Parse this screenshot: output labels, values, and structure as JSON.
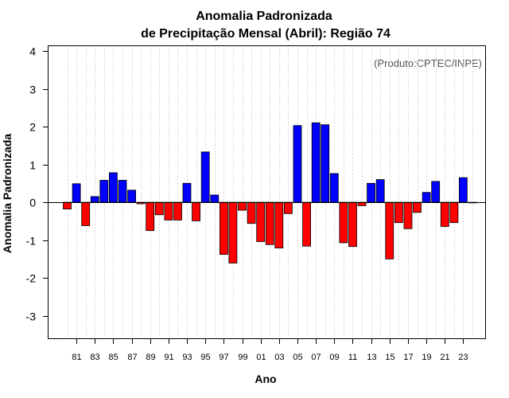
{
  "chart_data": {
    "type": "bar",
    "title": "Anomalia Padronizada",
    "subtitle": "de Precipitação Mensal (Abril): Região 74",
    "xlabel": "Ano",
    "ylabel": "Anomalia Padronizada",
    "annotation": "(Produto:CPTEC/INPE)",
    "ylim": [
      -3.6,
      4.15
    ],
    "yticks": [
      -3,
      -2,
      -1,
      0,
      1,
      2,
      3,
      4
    ],
    "grid": true,
    "positive_color": "#0000ff",
    "negative_color": "#ff0000",
    "categories": [
      "80",
      "81",
      "82",
      "83",
      "84",
      "85",
      "86",
      "87",
      "88",
      "89",
      "90",
      "91",
      "92",
      "93",
      "94",
      "95",
      "96",
      "97",
      "98",
      "99",
      "00",
      "01",
      "02",
      "03",
      "04",
      "05",
      "06",
      "07",
      "08",
      "09",
      "10",
      "11",
      "12",
      "13",
      "14",
      "15",
      "16",
      "17",
      "18",
      "19",
      "20",
      "21",
      "22",
      "23",
      "24"
    ],
    "tick_labels": [
      "81",
      "83",
      "85",
      "87",
      "89",
      "91",
      "93",
      "95",
      "97",
      "99",
      "01",
      "03",
      "05",
      "07",
      "09",
      "11",
      "13",
      "15",
      "17",
      "19",
      "21",
      "23"
    ],
    "values": [
      -0.18,
      0.49,
      -0.62,
      0.15,
      0.58,
      0.78,
      0.58,
      0.32,
      -0.04,
      -0.75,
      -0.33,
      -0.47,
      -0.47,
      0.5,
      -0.49,
      1.33,
      0.19,
      -1.38,
      -1.61,
      -0.21,
      -0.56,
      -1.04,
      -1.12,
      -1.21,
      -0.3,
      2.03,
      -1.16,
      2.1,
      2.05,
      0.76,
      -1.07,
      -1.17,
      -0.09,
      0.5,
      0.6,
      -1.5,
      -0.54,
      -0.7,
      -0.27,
      0.26,
      0.55,
      -0.64,
      -0.54,
      0.65,
      0.0
    ]
  }
}
